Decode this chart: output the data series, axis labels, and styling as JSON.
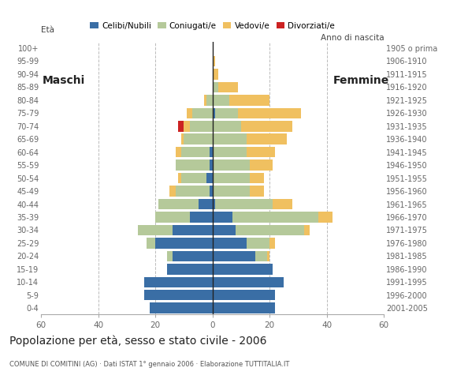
{
  "age_groups": [
    "0-4",
    "5-9",
    "10-14",
    "15-19",
    "20-24",
    "25-29",
    "30-34",
    "35-39",
    "40-44",
    "45-49",
    "50-54",
    "55-59",
    "60-64",
    "65-69",
    "70-74",
    "75-79",
    "80-84",
    "85-89",
    "90-94",
    "95-99",
    "100+"
  ],
  "birth_years": [
    "2001-2005",
    "1996-2000",
    "1991-1995",
    "1986-1990",
    "1981-1985",
    "1976-1980",
    "1971-1975",
    "1966-1970",
    "1961-1965",
    "1956-1960",
    "1951-1955",
    "1946-1950",
    "1941-1945",
    "1936-1940",
    "1931-1935",
    "1926-1930",
    "1921-1925",
    "1916-1920",
    "1911-1915",
    "1906-1910",
    "1905 o prima"
  ],
  "males": {
    "celibi": [
      22,
      24,
      24,
      16,
      14,
      20,
      14,
      8,
      5,
      1,
      2,
      1,
      1,
      0,
      0,
      0,
      0,
      0,
      0,
      0,
      0
    ],
    "coniugati": [
      0,
      0,
      0,
      0,
      2,
      3,
      12,
      12,
      14,
      12,
      9,
      12,
      10,
      10,
      8,
      7,
      2,
      0,
      0,
      0,
      0
    ],
    "vedovi": [
      0,
      0,
      0,
      0,
      0,
      0,
      0,
      0,
      0,
      2,
      1,
      0,
      2,
      1,
      2,
      2,
      1,
      0,
      0,
      0,
      0
    ],
    "divorziati": [
      0,
      0,
      0,
      0,
      0,
      0,
      0,
      0,
      0,
      0,
      0,
      0,
      0,
      0,
      2,
      0,
      0,
      0,
      0,
      0,
      0
    ]
  },
  "females": {
    "nubili": [
      22,
      22,
      25,
      21,
      15,
      12,
      8,
      7,
      1,
      0,
      0,
      0,
      0,
      0,
      0,
      1,
      0,
      0,
      0,
      0,
      0
    ],
    "coniugate": [
      0,
      0,
      0,
      0,
      4,
      8,
      24,
      30,
      20,
      13,
      13,
      13,
      12,
      12,
      10,
      8,
      6,
      2,
      0,
      0,
      0
    ],
    "vedove": [
      0,
      0,
      0,
      0,
      1,
      2,
      2,
      5,
      7,
      5,
      5,
      8,
      10,
      14,
      18,
      22,
      14,
      7,
      2,
      1,
      0
    ],
    "divorziate": [
      0,
      0,
      0,
      0,
      0,
      0,
      0,
      0,
      0,
      0,
      0,
      0,
      0,
      0,
      0,
      0,
      0,
      0,
      0,
      0,
      0
    ]
  },
  "colors": {
    "celibi": "#3a6ea5",
    "coniugati": "#b5c99a",
    "vedovi": "#f0c060",
    "divorziati": "#cc2222"
  },
  "title": "Popolazione per età, sesso e stato civile - 2006",
  "subtitle": "COMUNE DI COMITINI (AG) · Dati ISTAT 1° gennaio 2006 · Elaborazione TUTTITALIA.IT",
  "label_eta": "Età",
  "label_anno": "Anno di nascita",
  "label_maschi": "Maschi",
  "label_femmine": "Femmine",
  "legend_labels": [
    "Celibi/Nubili",
    "Coniugati/e",
    "Vedovi/e",
    "Divorziati/e"
  ],
  "xlim": 60,
  "background_color": "#ffffff",
  "grid_color": "#bbbbbb"
}
